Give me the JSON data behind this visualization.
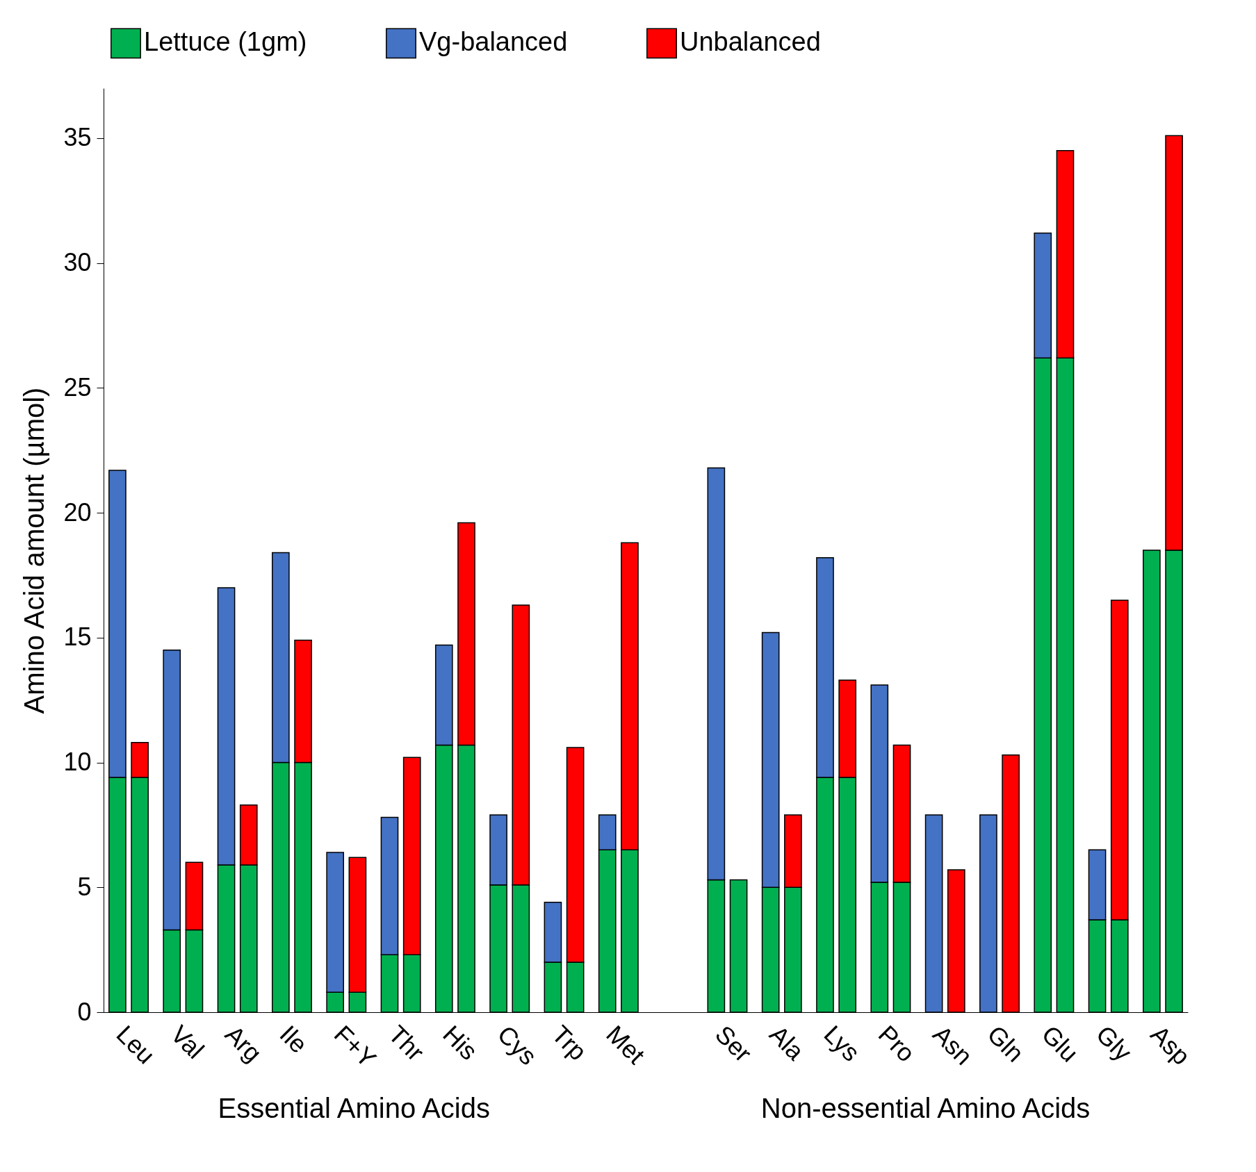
{
  "chart_data": {
    "type": "bar",
    "stacked": true,
    "ylabel": "Amino Acid amount (µmol)",
    "categories": [
      "Leu",
      null,
      "Val",
      null,
      "Arg",
      null,
      "Ile",
      null,
      "F+Y",
      null,
      "Thr",
      null,
      "His",
      null,
      "Cys",
      null,
      "Trp",
      null,
      "Met",
      null,
      null,
      null,
      "Ser",
      null,
      "Ala",
      null,
      "Lys",
      null,
      "Pro",
      null,
      "Asn",
      null,
      "Gln",
      null,
      "Glu",
      null,
      "Gly",
      null,
      "Asp",
      null
    ],
    "series": [
      {
        "name": "Lettuce (1gm)",
        "color": "#00b050",
        "values": [
          9.4,
          9.4,
          3.3,
          3.3,
          5.9,
          5.9,
          10.0,
          10.0,
          0.8,
          0.8,
          2.3,
          2.3,
          10.7,
          10.7,
          5.1,
          5.1,
          2.0,
          2.0,
          6.5,
          6.5,
          null,
          null,
          5.3,
          5.3,
          5.0,
          5.0,
          9.4,
          9.4,
          5.2,
          5.2,
          null,
          null,
          null,
          null,
          26.2,
          26.2,
          3.7,
          3.7,
          18.5,
          18.5
        ]
      },
      {
        "name": "Vg-balanced",
        "color": "#4472c4",
        "values": [
          12.3,
          null,
          11.2,
          null,
          11.1,
          null,
          8.4,
          null,
          5.6,
          null,
          5.5,
          null,
          4.0,
          null,
          2.8,
          null,
          2.4,
          null,
          1.4,
          null,
          null,
          null,
          16.5,
          null,
          10.2,
          null,
          8.8,
          null,
          7.9,
          null,
          7.9,
          null,
          7.9,
          null,
          5.0,
          null,
          2.8,
          null,
          null,
          null
        ]
      },
      {
        "name": "Unbalanced",
        "color": "#ff0000",
        "values": [
          null,
          1.4,
          null,
          2.7,
          null,
          2.4,
          null,
          4.9,
          null,
          5.4,
          null,
          7.9,
          null,
          8.9,
          null,
          11.2,
          null,
          8.6,
          null,
          12.3,
          null,
          null,
          null,
          null,
          null,
          2.9,
          null,
          3.9,
          null,
          5.5,
          null,
          5.7,
          null,
          10.3,
          null,
          8.3,
          null,
          12.8,
          null,
          16.6
        ]
      }
    ],
    "ylim": [
      0,
      37
    ],
    "yticks": [
      0,
      5,
      10,
      15,
      20,
      25,
      30,
      35
    ],
    "grid": false,
    "legend": "top",
    "annotations": [
      "Essential Amino Acids",
      "Non-essential Amino Acids"
    ]
  }
}
